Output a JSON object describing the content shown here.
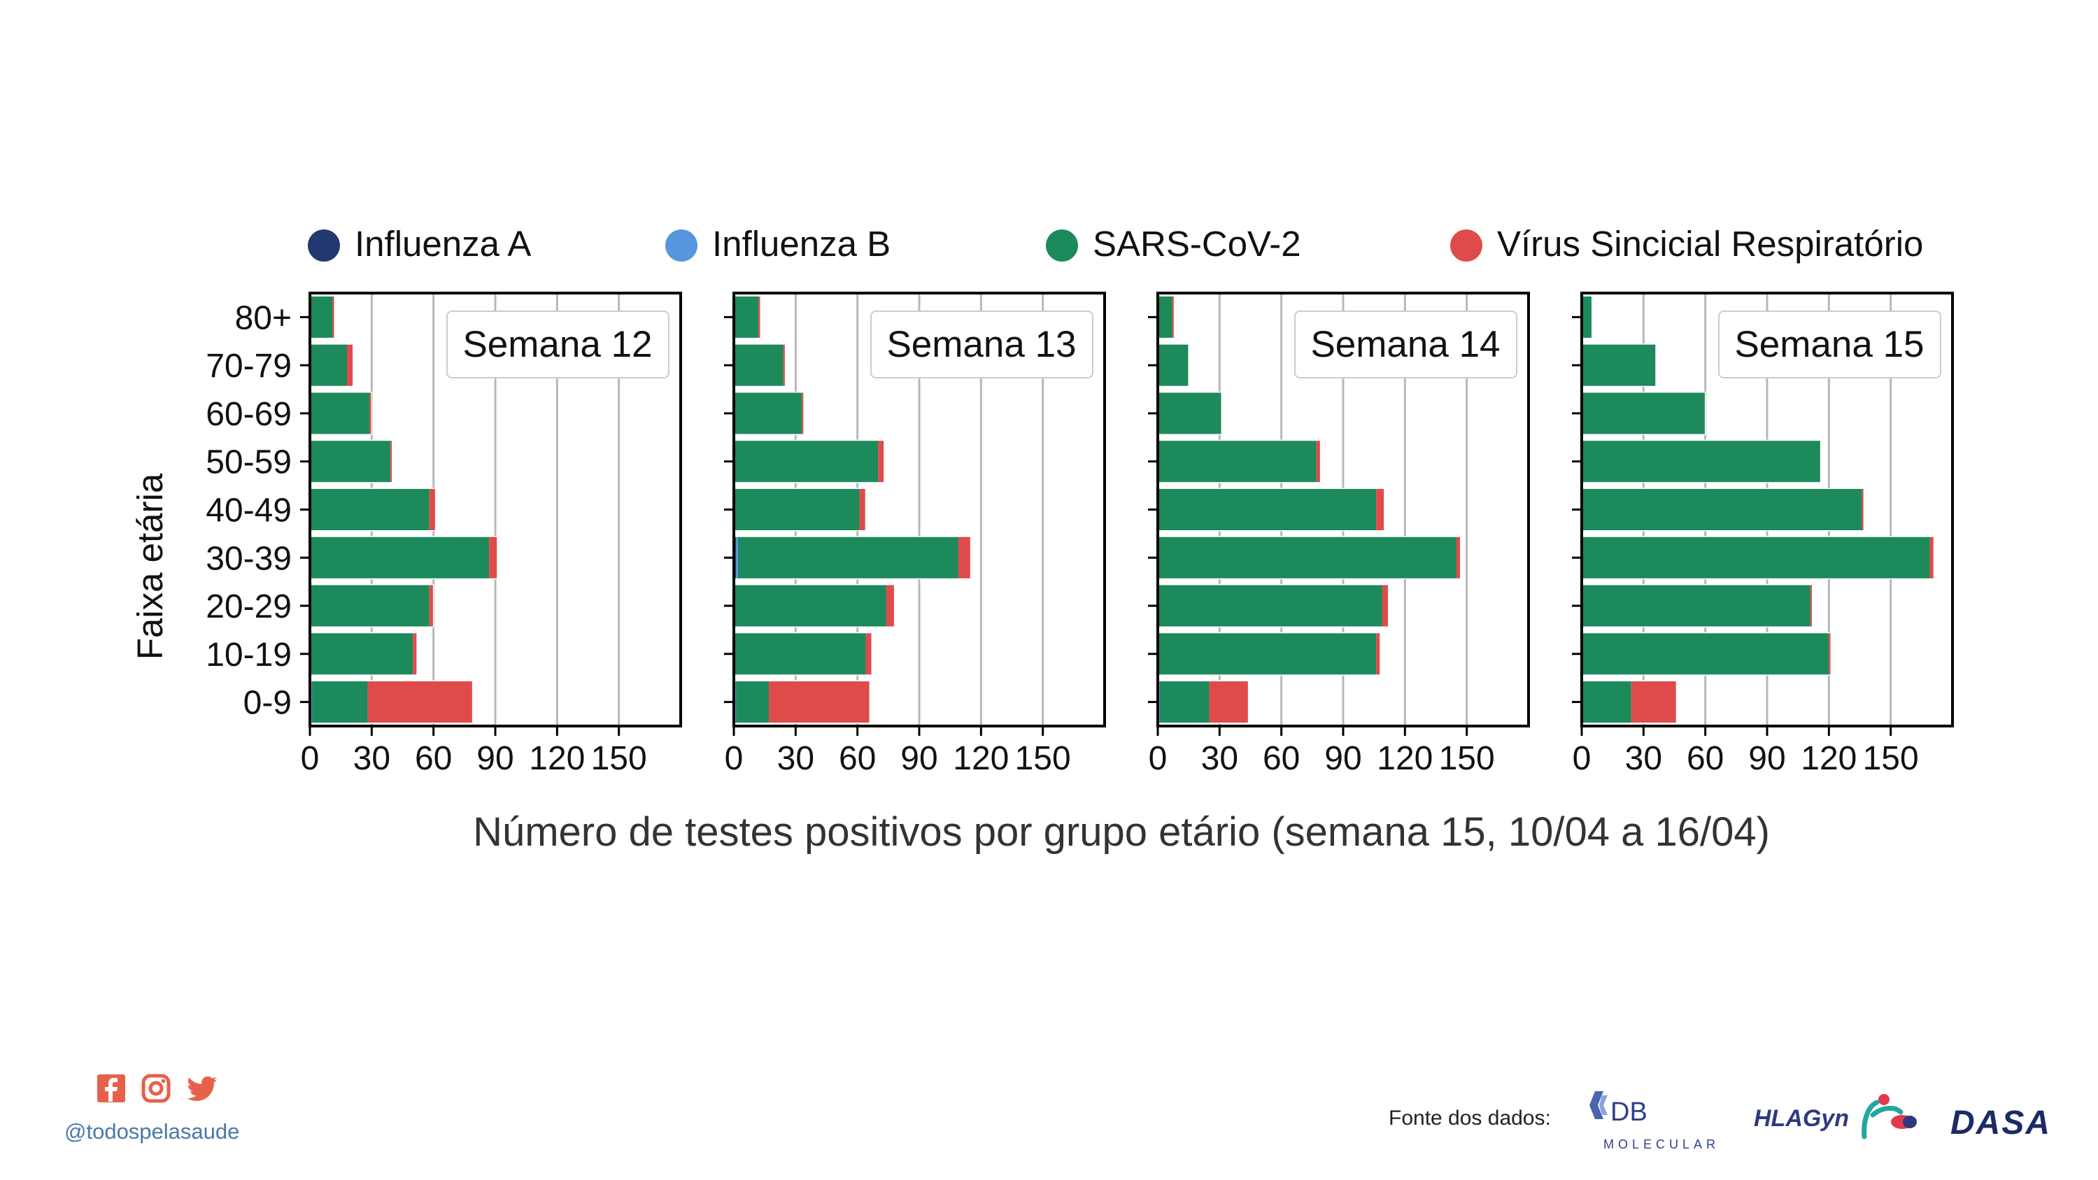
{
  "chart_data": {
    "type": "bar",
    "orientation": "horizontal",
    "stacked": true,
    "categories": [
      "0-9",
      "10-19",
      "20-29",
      "30-39",
      "40-49",
      "50-59",
      "60-69",
      "70-79",
      "80+"
    ],
    "ylabel": "Faixa etária",
    "xlabel": "Número de testes positivos por grupo etário (semana 15, 10/04 a 16/04)",
    "xticks": [
      "0",
      "30",
      "60",
      "90",
      "120",
      "150"
    ],
    "xlim": [
      0,
      180
    ],
    "grid": "vertical",
    "legend_position": "top",
    "legend": [
      {
        "name": "Influenza A",
        "color": "#22386e"
      },
      {
        "name": "Influenza B",
        "color": "#5596de"
      },
      {
        "name": "SARS-CoV-2",
        "color": "#1c8a5a"
      },
      {
        "name": "Vírus Sincicial Respiratório",
        "color": "#df4b4b"
      }
    ],
    "panels": [
      {
        "title": "Semana 12",
        "series": [
          {
            "name": "Influenza A",
            "values": [
              0,
              0,
              0,
              0,
              0,
              0,
              0,
              0,
              0
            ]
          },
          {
            "name": "Influenza B",
            "values": [
              1,
              0,
              0,
              0,
              0,
              0,
              0,
              0,
              0
            ]
          },
          {
            "name": "SARS-CoV-2",
            "values": [
              27,
              50,
              58,
              87,
              58,
              39,
              29,
              18,
              11
            ]
          },
          {
            "name": "Vírus Sincicial Respiratório",
            "values": [
              51,
              2,
              2,
              4,
              3,
              1,
              1,
              3,
              1
            ]
          }
        ]
      },
      {
        "title": "Semana 13",
        "series": [
          {
            "name": "Influenza A",
            "values": [
              0,
              0,
              0,
              1,
              0,
              0,
              0,
              0,
              0
            ]
          },
          {
            "name": "Influenza B",
            "values": [
              1,
              0,
              0,
              1,
              0,
              0,
              0,
              0,
              0
            ]
          },
          {
            "name": "SARS-CoV-2",
            "values": [
              16,
              64,
              74,
              107,
              61,
              70,
              33,
              24,
              12
            ]
          },
          {
            "name": "Vírus Sincicial Respiratório",
            "values": [
              49,
              3,
              4,
              6,
              3,
              3,
              1,
              1,
              1
            ]
          }
        ]
      },
      {
        "title": "Semana 14",
        "series": [
          {
            "name": "Influenza A",
            "values": [
              0,
              0,
              0,
              0,
              0,
              0,
              0,
              0,
              0
            ]
          },
          {
            "name": "Influenza B",
            "values": [
              1,
              0,
              0,
              0,
              0,
              0,
              0,
              0,
              0
            ]
          },
          {
            "name": "SARS-CoV-2",
            "values": [
              24,
              106,
              109,
              145,
              106,
              77,
              31,
              15,
              7
            ]
          },
          {
            "name": "Vírus Sincicial Respiratório",
            "values": [
              19,
              2,
              3,
              2,
              4,
              2,
              0,
              0,
              1
            ]
          }
        ]
      },
      {
        "title": "Semana 15",
        "series": [
          {
            "name": "Influenza A",
            "values": [
              0,
              0,
              0,
              0,
              0,
              0,
              0,
              0,
              0
            ]
          },
          {
            "name": "Influenza B",
            "values": [
              0,
              0,
              0,
              0,
              0,
              0,
              0,
              0,
              0
            ]
          },
          {
            "name": "SARS-CoV-2",
            "values": [
              24,
              120,
              111,
              169,
              136,
              116,
              60,
              36,
              5
            ]
          },
          {
            "name": "Vírus Sincicial Respiratório",
            "values": [
              22,
              1,
              1,
              2,
              1,
              0,
              0,
              0,
              0
            ]
          }
        ]
      }
    ]
  },
  "footer": {
    "social_icons": [
      "facebook-icon",
      "instagram-icon",
      "twitter-icon"
    ],
    "social_color": "#e8604c",
    "handle": "@todospelasaude",
    "source_label": "Fonte dos dados:",
    "logos": [
      {
        "name": "db-molecular-logo",
        "text_main": "DB",
        "text_sub": "MOLECULAR"
      },
      {
        "name": "hlagyn-logo",
        "text_main": "HLAGyn"
      },
      {
        "name": "dasa-logo",
        "text_main": "DASA"
      }
    ]
  }
}
